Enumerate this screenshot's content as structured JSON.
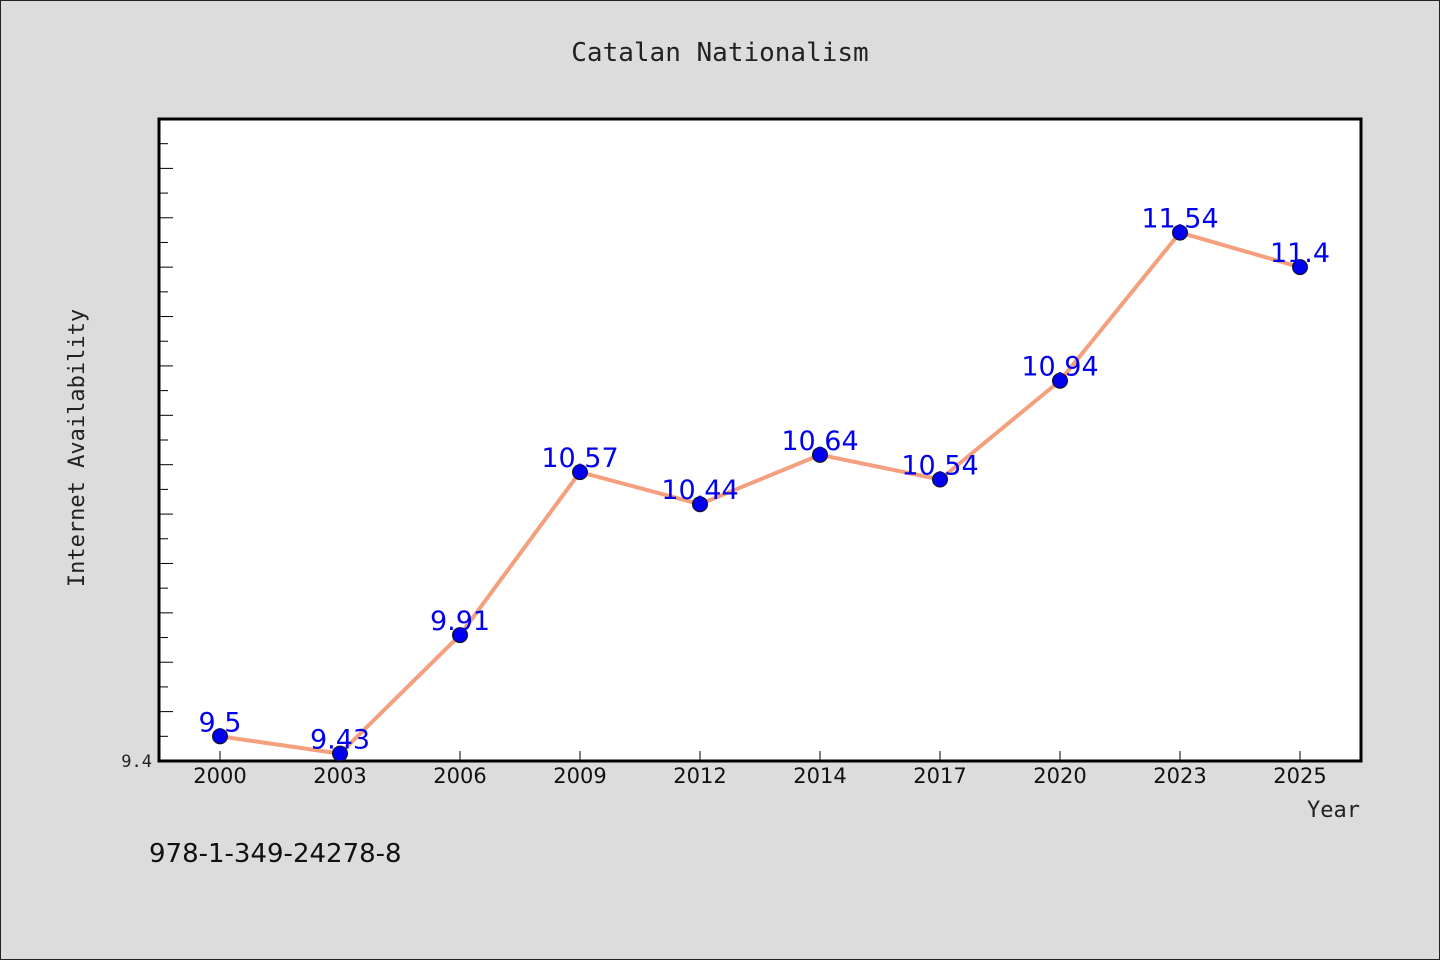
{
  "chart_data": {
    "type": "line",
    "title": "Catalan Nationalism",
    "xlabel": "Year",
    "ylabel": "Internet Availability",
    "categories": [
      "2000",
      "2003",
      "2006",
      "2009",
      "2012",
      "2014",
      "2017",
      "2020",
      "2023",
      "2025"
    ],
    "series": [
      {
        "values": [
          9.5,
          9.43,
          9.91,
          10.57,
          10.44,
          10.64,
          10.54,
          10.94,
          11.54,
          11.4
        ],
        "line_color": "#f4a07e",
        "marker_color": "#0000ee",
        "label_color": "#0000ee"
      }
    ],
    "ylim": [
      9.4,
      12.0
    ],
    "y_tick_labels": [
      "9.4"
    ],
    "grid": false,
    "legend": false
  },
  "footer": {
    "isbn": "978-1-349-24278-8"
  }
}
